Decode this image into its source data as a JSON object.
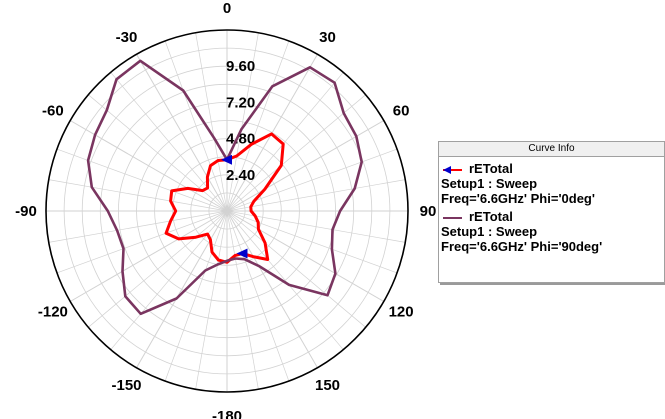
{
  "chart_data": {
    "type": "polar",
    "r_ticks": [
      "2.40",
      "4.80",
      "7.20",
      "9.60"
    ],
    "r_max": 12.0,
    "angle_labels": [
      "0",
      "30",
      "60",
      "90",
      "120",
      "150",
      "-180",
      "-150",
      "-120",
      "-90",
      "-60",
      "-30"
    ],
    "grid": true,
    "legend": {
      "title": "Curve Info",
      "position": "right",
      "entries": [
        {
          "trace": "rETotal",
          "setup": "Setup1 : Sweep",
          "params": "Freq='6.6GHz' Phi='0deg'",
          "color": "#ff0000",
          "marker": "#0000cc"
        },
        {
          "trace": "rETotal",
          "setup": "Setup1 : Sweep",
          "params": "Freq='6.6GHz' Phi='90deg'",
          "color": "#7a3560"
        }
      ]
    },
    "series": [
      {
        "color": "#ff0000",
        "theta": [
          0,
          10,
          20,
          30,
          40,
          50,
          60,
          70,
          80,
          90,
          100,
          110,
          120,
          130,
          140,
          150,
          160,
          170,
          180,
          190,
          200,
          210,
          220,
          230,
          240,
          250,
          260,
          270,
          280,
          290,
          300,
          310,
          320,
          330,
          340,
          350
        ],
        "r": [
          3.4,
          3.7,
          4.7,
          5.9,
          5.8,
          4.7,
          2.9,
          1.9,
          1.6,
          1.6,
          1.9,
          2.2,
          2.4,
          3.3,
          4.2,
          3.5,
          3.0,
          3.0,
          3.4,
          3.3,
          2.9,
          2.2,
          2.0,
          2.7,
          3.7,
          4.3,
          3.8,
          3.4,
          3.8,
          3.9,
          3.0,
          2.1,
          2.0,
          2.6,
          3.2,
          3.4
        ]
      },
      {
        "color": "#7a3560",
        "theta": [
          0,
          10,
          20,
          30,
          40,
          50,
          60,
          70,
          80,
          90,
          100,
          110,
          120,
          130,
          140,
          150,
          160,
          170,
          180,
          190,
          200,
          210,
          220,
          230,
          240,
          250,
          260,
          270,
          280,
          290,
          300,
          310,
          320,
          330,
          340,
          350
        ],
        "r": [
          3.4,
          5.5,
          8.8,
          11.0,
          11.1,
          10.1,
          9.9,
          9.5,
          8.6,
          7.5,
          7.1,
          7.4,
          8.3,
          8.7,
          6.4,
          4.2,
          3.4,
          3.2,
          3.3,
          3.6,
          4.2,
          6.7,
          8.9,
          8.8,
          8.0,
          7.3,
          7.4,
          7.9,
          9.1,
          9.8,
          10.1,
          10.4,
          11.4,
          11.5,
          8.5,
          4.9
        ]
      }
    ]
  }
}
